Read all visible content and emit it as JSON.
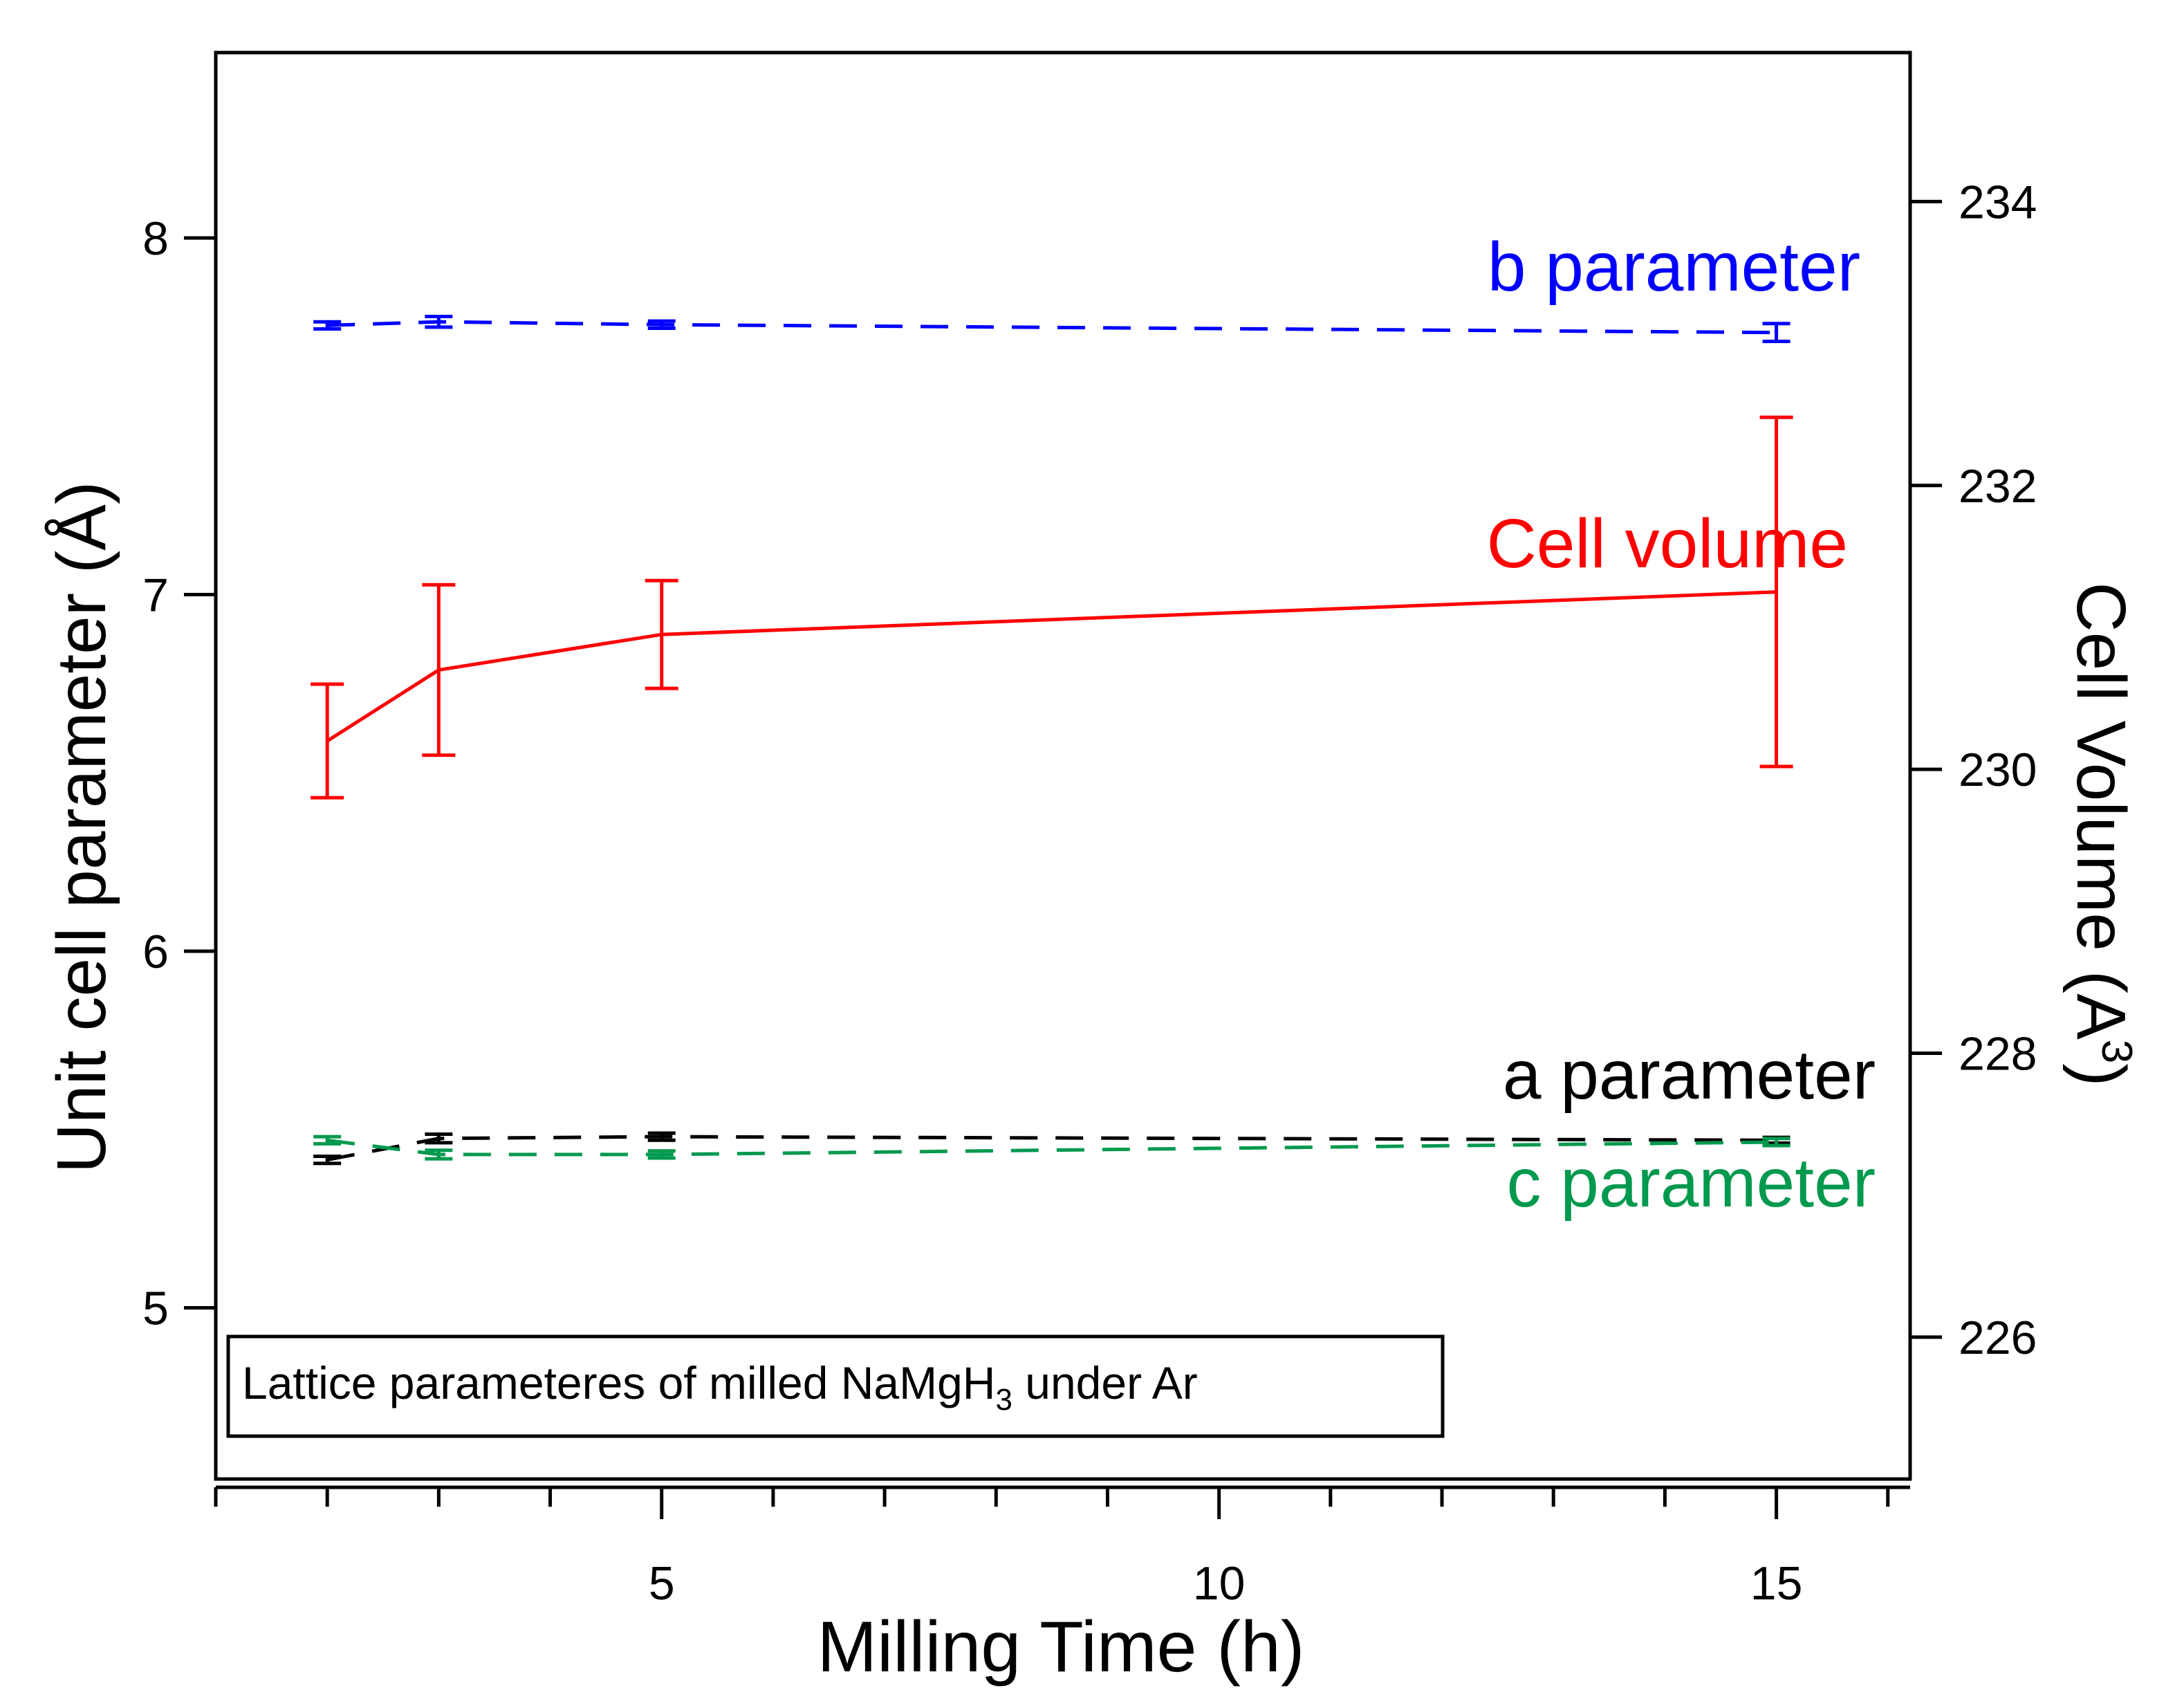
{
  "chart_data": {
    "type": "line",
    "x": [
      2,
      3,
      5,
      15
    ],
    "xlabel": "Milling Time (h)",
    "xlim": [
      1,
      16.2
    ],
    "xticks_major": [
      5,
      10,
      15
    ],
    "xticks_minor": [
      1,
      2,
      3,
      4,
      6,
      7,
      8,
      9,
      11,
      12,
      13,
      14,
      16
    ],
    "ylabel_left": "Unit cell parameter (Å)",
    "ylim_left": [
      4.52,
      8.52
    ],
    "yticks_left": [
      5,
      6,
      7,
      8
    ],
    "ylabel_right_main": "Cell Volume (A",
    "ylabel_right_sup": "3",
    "ylabel_right_end": ")",
    "ylim_right": [
      225.0,
      235.05
    ],
    "yticks_right": [
      226,
      228,
      230,
      232,
      234
    ],
    "series": [
      {
        "name": "b parameter",
        "label": "b parameter",
        "axis": "left",
        "color": "#0000ff",
        "style": "dashed",
        "values": [
          7.755,
          7.765,
          7.757,
          7.735
        ],
        "errors": [
          0.01,
          0.015,
          0.01,
          0.025
        ],
        "label_pos": "top-right"
      },
      {
        "name": "Cell volume",
        "label": "Cell volume",
        "axis": "right",
        "color": "#ff0000",
        "style": "solid",
        "values": [
          230.2,
          230.7,
          230.95,
          231.25
        ],
        "errors": [
          0.4,
          0.6,
          0.38,
          1.23
        ],
        "label_pos": "middle-right"
      },
      {
        "name": "a parameter",
        "label": "a parameter",
        "axis": "left",
        "color": "#000000",
        "style": "dashed",
        "values": [
          5.415,
          5.475,
          5.48,
          5.47
        ],
        "errors": [
          0.01,
          0.012,
          0.01,
          0.008
        ],
        "label_pos": "bottom-right"
      },
      {
        "name": "c parameter",
        "label": "c parameter",
        "axis": "left",
        "color": "#00994d",
        "style": "dashed",
        "values": [
          5.47,
          5.43,
          5.43,
          5.465
        ],
        "errors": [
          0.01,
          0.012,
          0.01,
          0.01
        ],
        "label_pos": "bottom-right"
      }
    ],
    "annotation": {
      "prefix": "Lattice parameteres of milled NaMgH",
      "subscript": "3",
      "suffix": " under Ar"
    }
  }
}
